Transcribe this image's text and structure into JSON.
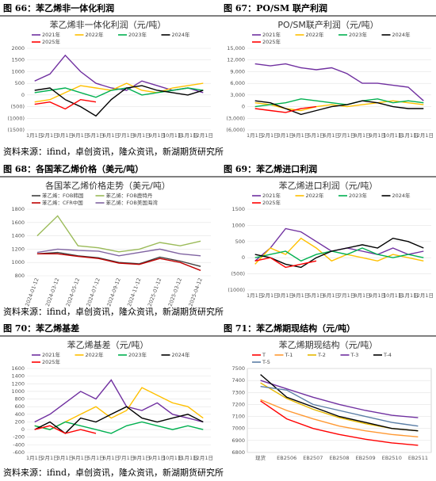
{
  "chart_data": [
    {
      "type": "line",
      "figure": "图 66：苯乙烯非一体化利润",
      "title": "苯乙烯非一体化利润（元/吨）",
      "categories": [
        "1月1日",
        "2月1日",
        "3月1日",
        "4月1日",
        "5月1日",
        "6月1日",
        "7月1日",
        "8月1日",
        "9月1日",
        "10月1日",
        "11月1日",
        "12月1日"
      ],
      "series": [
        {
          "name": "2021年",
          "color": "#7030a0",
          "values": [
            600,
            900,
            1700,
            1000,
            500,
            300,
            200,
            600,
            400,
            200,
            300,
            100
          ]
        },
        {
          "name": "2022年",
          "color": "#ffc000",
          "values": [
            -300,
            -200,
            100,
            400,
            300,
            200,
            500,
            200,
            100,
            300,
            400,
            500
          ]
        },
        {
          "name": "2023年",
          "color": "#00b050",
          "values": [
            100,
            200,
            300,
            100,
            -100,
            200,
            300,
            0,
            100,
            200,
            300,
            200
          ]
        },
        {
          "name": "2024年",
          "color": "#000000",
          "values": [
            200,
            300,
            -200,
            -500,
            -900,
            -200,
            300,
            400,
            200,
            100,
            0,
            200
          ]
        },
        {
          "name": "2025年",
          "color": "#ff0000",
          "values": [
            -400,
            -300,
            -600,
            -200,
            -300,
            null,
            null,
            null,
            null,
            null,
            null,
            null
          ]
        }
      ],
      "ylim": [
        -1500,
        2000
      ],
      "yticks": [
        2000,
        1500,
        1000,
        500,
        0,
        {
          "value": -500,
          "label": "(500)"
        },
        {
          "value": -1000,
          "label": "(1000)"
        },
        {
          "value": -1500,
          "label": "(1500)"
        }
      ]
    },
    {
      "type": "line",
      "figure": "图 67：PO/SM 联产利润",
      "title": "PO/SM联产利润（元/吨）",
      "categories": [
        "1月1日",
        "2月1日",
        "3月1日",
        "4月1日",
        "5月1日",
        "6月1日",
        "7月1日",
        "8月1日",
        "9月1日",
        "10月1日",
        "11月1日",
        "12月1日"
      ],
      "series": [
        {
          "name": "2021年",
          "color": "#7030a0",
          "values": [
            11000,
            10500,
            11000,
            10000,
            9500,
            10000,
            8500,
            6000,
            6000,
            5500,
            5000,
            1500
          ]
        },
        {
          "name": "2022年",
          "color": "#ffc000",
          "values": [
            1000,
            500,
            -500,
            -1000,
            0,
            500,
            0,
            500,
            1000,
            1500,
            1000,
            500
          ]
        },
        {
          "name": "2023年",
          "color": "#00b050",
          "values": [
            0,
            500,
            1000,
            2000,
            1500,
            1000,
            500,
            1500,
            2000,
            1000,
            1500,
            1000
          ]
        },
        {
          "name": "2024年",
          "color": "#000000",
          "values": [
            1500,
            1000,
            -500,
            -2000,
            -1000,
            0,
            500,
            1500,
            1000,
            0,
            -500,
            -500
          ]
        },
        {
          "name": "2025年",
          "color": "#ff0000",
          "values": [
            -500,
            -1000,
            -1500,
            -500,
            0,
            null,
            null,
            null,
            null,
            null,
            null,
            null
          ]
        }
      ],
      "ylim": [
        -6000,
        15000
      ],
      "yticks": [
        {
          "value": 15000,
          "label": "15,000"
        },
        {
          "value": 12000,
          "label": "12,000"
        },
        {
          "value": 9000,
          "label": "9,000"
        },
        {
          "value": 6000,
          "label": "6,000"
        },
        {
          "value": 3000,
          "label": "3,000"
        },
        0,
        {
          "value": -3000,
          "label": "(3,000)"
        },
        {
          "value": -6000,
          "label": "(6,000)"
        }
      ]
    },
    {
      "type": "line",
      "figure": "图 68：各国苯乙烯价格（美元/吨）",
      "title": "各国苯乙烯价格走势（美元/吨）",
      "rotate_x": true,
      "categories": [
        "2024-01-12",
        "2024-03-12",
        "2024-05-12",
        "2024-07-12",
        "2024-09-12",
        "2024-11-12",
        "2025-01-12",
        "2025-03-12",
        "2025-04-12"
      ],
      "series": [
        {
          "name": "苯乙烯：FOB韩国",
          "color": "#404040",
          "values": [
            1130,
            1150,
            1100,
            1070,
            1000,
            980,
            1080,
            1020,
            940
          ]
        },
        {
          "name": "苯乙烯：FOB鹿特丹",
          "color": "#9bbb59",
          "values": [
            1400,
            1700,
            1250,
            1220,
            1160,
            1200,
            1300,
            1250,
            1320
          ]
        },
        {
          "name": "苯乙烯：CFR中国",
          "color": "#c00000",
          "values": [
            1130,
            1130,
            1090,
            1060,
            990,
            970,
            1060,
            1000,
            880
          ]
        },
        {
          "name": "苯乙烯：FOB美国海湾",
          "color": "#8064a2",
          "values": [
            1150,
            1200,
            1180,
            1170,
            1100,
            1150,
            1200,
            1130,
            1100
          ]
        }
      ],
      "ylim": [
        800,
        1800
      ],
      "yticks": [
        1800,
        1600,
        1400,
        1200,
        1000,
        800
      ]
    },
    {
      "type": "line",
      "figure": "图 69：苯乙烯进口利润",
      "title": "苯乙烯进口利润（元/吨）",
      "categories": [
        "1月1日",
        "2月1日",
        "3月1日",
        "4月1日",
        "5月1日",
        "6月1日",
        "7月1日",
        "8月1日",
        "9月1日",
        "10月1日",
        "11月1日",
        "12月1日"
      ],
      "series": [
        {
          "name": "2021年",
          "color": "#7030a0",
          "values": [
            -100,
            300,
            900,
            800,
            500,
            200,
            300,
            200,
            100,
            300,
            100,
            200
          ]
        },
        {
          "name": "2022年",
          "color": "#ffc000",
          "values": [
            -200,
            300,
            100,
            600,
            300,
            -100,
            100,
            0,
            -100,
            100,
            0,
            -100
          ]
        },
        {
          "name": "2023年",
          "color": "#00b050",
          "values": [
            0,
            100,
            200,
            -100,
            100,
            200,
            100,
            300,
            100,
            0,
            100,
            0
          ]
        },
        {
          "name": "2024年",
          "color": "#000000",
          "values": [
            100,
            0,
            -200,
            -300,
            0,
            200,
            300,
            400,
            300,
            600,
            500,
            300
          ]
        },
        {
          "name": "2025年",
          "color": "#ff0000",
          "values": [
            -100,
            0,
            -300,
            -200,
            -100,
            null,
            null,
            null,
            null,
            null,
            null,
            null
          ]
        }
      ],
      "ylim": [
        -1000,
        1500
      ],
      "yticks": [
        1500,
        1000,
        500,
        0,
        {
          "value": -500,
          "label": "(500)"
        },
        {
          "value": -1000,
          "label": "(1000)"
        }
      ]
    },
    {
      "type": "line",
      "figure": "图 70：苯乙烯基差",
      "title": "苯乙烯基差（元/吨）",
      "categories": [
        "1月1日",
        "2月1日",
        "3月1日",
        "4月1日",
        "5月1日",
        "6月1日",
        "7月1日",
        "8月1日",
        "9月1日",
        "10月1日",
        "11月1日",
        "12月1日"
      ],
      "series": [
        {
          "name": "2021年",
          "color": "#7030a0",
          "values": [
            200,
            400,
            700,
            1000,
            800,
            1300,
            600,
            500,
            700,
            400,
            300,
            200
          ]
        },
        {
          "name": "2022年",
          "color": "#ffc000",
          "values": [
            100,
            0,
            200,
            400,
            600,
            300,
            500,
            1100,
            900,
            700,
            600,
            300
          ]
        },
        {
          "name": "2023年",
          "color": "#00b050",
          "values": [
            100,
            0,
            200,
            100,
            0,
            -100,
            100,
            200,
            100,
            0,
            100,
            0
          ]
        },
        {
          "name": "2024年",
          "color": "#000000",
          "values": [
            0,
            200,
            -100,
            300,
            200,
            400,
            600,
            300,
            200,
            300,
            400,
            200
          ]
        },
        {
          "name": "2025年",
          "color": "#ff0000",
          "values": [
            0,
            100,
            -100,
            0,
            -100,
            null,
            null,
            null,
            null,
            null,
            null,
            null
          ]
        }
      ],
      "ylim": [
        -600,
        1600
      ],
      "yticks": [
        1600,
        1400,
        1200,
        1000,
        800,
        600,
        400,
        200,
        0,
        -200,
        -400,
        -600
      ]
    },
    {
      "type": "line",
      "figure": "图 71：苯乙烯期现结构（元/吨）",
      "title": "苯乙烯期现结构（元/吨）",
      "categories": [
        "现货",
        "EB2506",
        "EB2507",
        "EB2508",
        "EB2509",
        "EB2510",
        "EB2511"
      ],
      "series": [
        {
          "name": "T",
          "color": "#ff0000",
          "values": [
            7230,
            7080,
            7000,
            6950,
            6910,
            6880,
            6860
          ]
        },
        {
          "name": "T-1",
          "color": "#ff9933",
          "values": [
            7240,
            7150,
            7080,
            7020,
            6980,
            6950,
            6930
          ]
        },
        {
          "name": "T-2",
          "color": "#e6b800",
          "values": [
            7380,
            7250,
            7160,
            7090,
            7040,
            7000,
            6980
          ]
        },
        {
          "name": "T-3",
          "color": "#7030a0",
          "values": [
            7400,
            7330,
            7260,
            7200,
            7150,
            7110,
            7090
          ]
        },
        {
          "name": "T-4",
          "color": "#000000",
          "values": [
            7450,
            7260,
            7180,
            7100,
            7050,
            7000,
            6980
          ]
        },
        {
          "name": "T-5",
          "color": "#5b7fa6",
          "values": [
            7350,
            7320,
            7200,
            7150,
            7100,
            7050,
            7020
          ]
        }
      ],
      "ylim": [
        6800,
        7500
      ],
      "yticks": [
        7500,
        7400,
        7300,
        7200,
        7100,
        7000,
        6900,
        6800
      ]
    }
  ],
  "sources": [
    "资料来源：ifind，卓创资讯，隆众资讯，新湖期货研究所",
    "资料来源：ifind，卓创资讯，隆众资讯，新湖期货研究所",
    "资料来源：ifind，卓创资讯，隆众资讯，新湖期货研究所"
  ]
}
